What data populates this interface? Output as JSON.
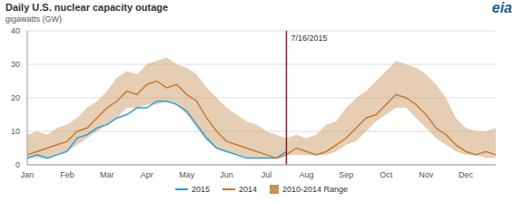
{
  "chart_data": {
    "type": "line",
    "title": "Daily U.S. nuclear capacity outage",
    "y_label": "gigawatts (GW)",
    "logo": "eia",
    "categories": [
      "Jan",
      null,
      null,
      null,
      "Feb",
      null,
      null,
      null,
      "Mar",
      null,
      null,
      null,
      "Apr",
      null,
      null,
      null,
      "May",
      null,
      null,
      null,
      "Jun",
      null,
      null,
      null,
      "Jul",
      null,
      null,
      null,
      "Aug",
      null,
      null,
      null,
      "Sep",
      null,
      null,
      null,
      "Oct",
      null,
      null,
      null,
      "Nov",
      null,
      null,
      null,
      "Dec",
      null,
      null,
      null
    ],
    "ylim": [
      0,
      40
    ],
    "yticks": [
      0,
      10,
      20,
      30,
      40
    ],
    "grid": true,
    "legend": "bottom",
    "series": [
      {
        "name": "2015",
        "color": "#2b9fd8",
        "type": "line",
        "values": [
          2,
          3,
          2,
          3,
          4,
          8,
          9,
          11,
          12,
          14,
          15,
          17,
          17,
          19,
          19,
          18,
          16,
          12,
          8,
          5,
          4,
          3,
          2,
          2,
          2,
          2,
          4,
          null,
          null,
          null,
          null,
          null,
          null,
          null,
          null,
          null,
          null,
          null,
          null,
          null,
          null,
          null,
          null,
          null,
          null,
          null,
          null,
          null
        ]
      },
      {
        "name": "2014",
        "color": "#c87a34",
        "type": "line",
        "values": [
          3,
          4,
          5,
          6,
          7,
          10,
          11,
          14,
          17,
          19,
          22,
          21,
          24,
          25,
          23,
          24,
          21,
          19,
          14,
          10,
          7,
          6,
          5,
          4,
          3,
          2,
          3,
          5,
          4,
          3,
          4,
          6,
          8,
          11,
          14,
          15,
          18,
          21,
          20,
          18,
          15,
          11,
          9,
          6,
          4,
          3,
          4,
          3
        ]
      },
      {
        "name": "2010-2014 Range",
        "color": "#c8925a",
        "type": "area",
        "values": [
          [
            2,
            9
          ],
          [
            2,
            10
          ],
          [
            2,
            9
          ],
          [
            3,
            11
          ],
          [
            4,
            12
          ],
          [
            6,
            14
          ],
          [
            8,
            17
          ],
          [
            10,
            19
          ],
          [
            12,
            22
          ],
          [
            14,
            26
          ],
          [
            17,
            28
          ],
          [
            17,
            27
          ],
          [
            18,
            30
          ],
          [
            18,
            31
          ],
          [
            19,
            32
          ],
          [
            18,
            30
          ],
          [
            15,
            29
          ],
          [
            11,
            27
          ],
          [
            7,
            23
          ],
          [
            5,
            20
          ],
          [
            4,
            17
          ],
          [
            3,
            15
          ],
          [
            2,
            13
          ],
          [
            2,
            12
          ],
          [
            2,
            10
          ],
          [
            2,
            9
          ],
          [
            3,
            8
          ],
          [
            3,
            9
          ],
          [
            3,
            8
          ],
          [
            3,
            9
          ],
          [
            3,
            12
          ],
          [
            4,
            13
          ],
          [
            6,
            17
          ],
          [
            7,
            20
          ],
          [
            10,
            22
          ],
          [
            13,
            25
          ],
          [
            15,
            28
          ],
          [
            17,
            31
          ],
          [
            17,
            30
          ],
          [
            14,
            29
          ],
          [
            11,
            27
          ],
          [
            8,
            24
          ],
          [
            6,
            20
          ],
          [
            4,
            14
          ],
          [
            3,
            11
          ],
          [
            3,
            10
          ],
          [
            2,
            10
          ],
          [
            2,
            11
          ]
        ]
      }
    ],
    "annotations": [
      {
        "text": "7/16/2015",
        "position": 26,
        "color": "#8b1a2b"
      }
    ]
  }
}
